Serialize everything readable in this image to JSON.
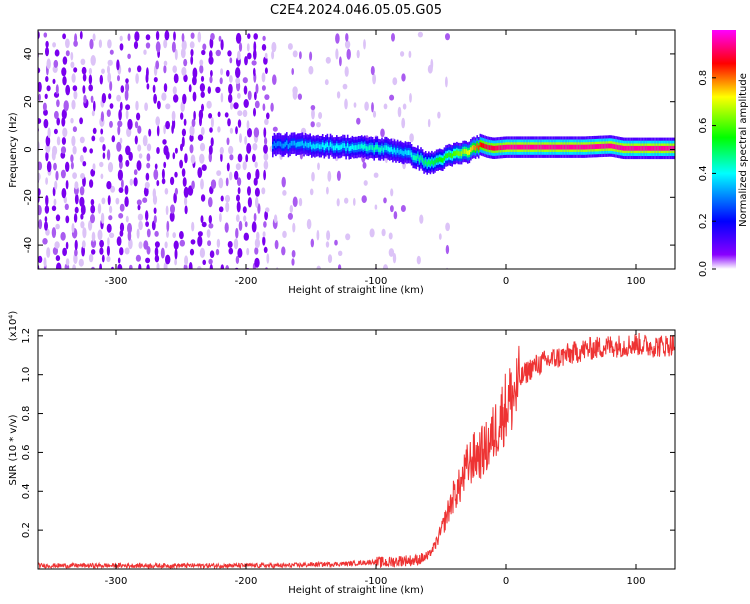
{
  "title": "C2E4.2024.046.05.05.G05",
  "chart_data": [
    {
      "type": "heatmap",
      "xlabel": "Height of straight line (km)",
      "ylabel": "Frequency (Hz)",
      "xlim": [
        -360,
        130
      ],
      "ylim": [
        -50,
        50
      ],
      "x_ticks": [
        -300,
        -200,
        -100,
        0,
        100
      ],
      "y_ticks": [
        -40,
        -20,
        0,
        20,
        40
      ],
      "grid": false,
      "colorbar": {
        "label": "Normalized spectral amplitude",
        "range": [
          0.0,
          1.0
        ],
        "ticks": [
          0.0,
          0.2,
          0.4,
          0.6,
          0.8
        ],
        "colormap": [
          "#ff00ff",
          "#ff0000",
          "#ffff00",
          "#00ff00",
          "#00ffff",
          "#0000ff",
          "#8800ff",
          "#ffffff"
        ]
      },
      "signal_track": {
        "description_x": [
          -180,
          -160,
          -140,
          -120,
          -100,
          -90,
          -80,
          -70,
          -60,
          -50,
          -40,
          -30,
          -20,
          -15,
          -10,
          0,
          20,
          40,
          60,
          80,
          90,
          100,
          130
        ],
        "frequency_hz": [
          2,
          2,
          1.5,
          1,
          0.5,
          0,
          -1,
          -3,
          -6,
          -4,
          -2,
          -1,
          2,
          1,
          0.5,
          1,
          1,
          1,
          1,
          1.5,
          0.5,
          0.5,
          0.5
        ],
        "peak_amplitude": [
          0.3,
          0.35,
          0.4,
          0.4,
          0.45,
          0.4,
          0.35,
          0.45,
          0.5,
          0.55,
          0.6,
          0.7,
          0.85,
          0.9,
          0.9,
          0.95,
          0.95,
          0.95,
          0.95,
          0.95,
          0.95,
          0.95,
          0.95
        ]
      },
      "noise_region_x": [
        -360,
        -80
      ]
    },
    {
      "type": "line",
      "xlabel": "Height of straight line (km)",
      "ylabel": "SNR (10 * v/v)",
      "y_scale_label": "(x10⁴)",
      "xlim": [
        -360,
        130
      ],
      "ylim": [
        0,
        1.23
      ],
      "x_ticks": [
        -300,
        -200,
        -100,
        0,
        100
      ],
      "y_ticks": [
        0.2,
        0.4,
        0.6,
        0.8,
        1.0,
        1.2
      ],
      "grid": false,
      "series": [
        {
          "color": "#ee3333",
          "x": [
            -360,
            -300,
            -250,
            -200,
            -170,
            -150,
            -120,
            -100,
            -90,
            -80,
            -70,
            -60,
            -55,
            -50,
            -45,
            -40,
            -35,
            -30,
            -25,
            -20,
            -15,
            -10,
            -5,
            0,
            5,
            10,
            15,
            20,
            30,
            40,
            50,
            60,
            70,
            80,
            90,
            100,
            110,
            120,
            130
          ],
          "y": [
            0.02,
            0.02,
            0.02,
            0.02,
            0.02,
            0.025,
            0.03,
            0.04,
            0.04,
            0.05,
            0.05,
            0.07,
            0.12,
            0.2,
            0.3,
            0.4,
            0.45,
            0.55,
            0.6,
            0.62,
            0.65,
            0.72,
            0.8,
            0.88,
            0.93,
            0.98,
            1.02,
            1.05,
            1.08,
            1.1,
            1.12,
            1.14,
            1.15,
            1.16,
            1.16,
            1.17,
            1.16,
            1.16,
            1.17
          ]
        }
      ]
    }
  ]
}
